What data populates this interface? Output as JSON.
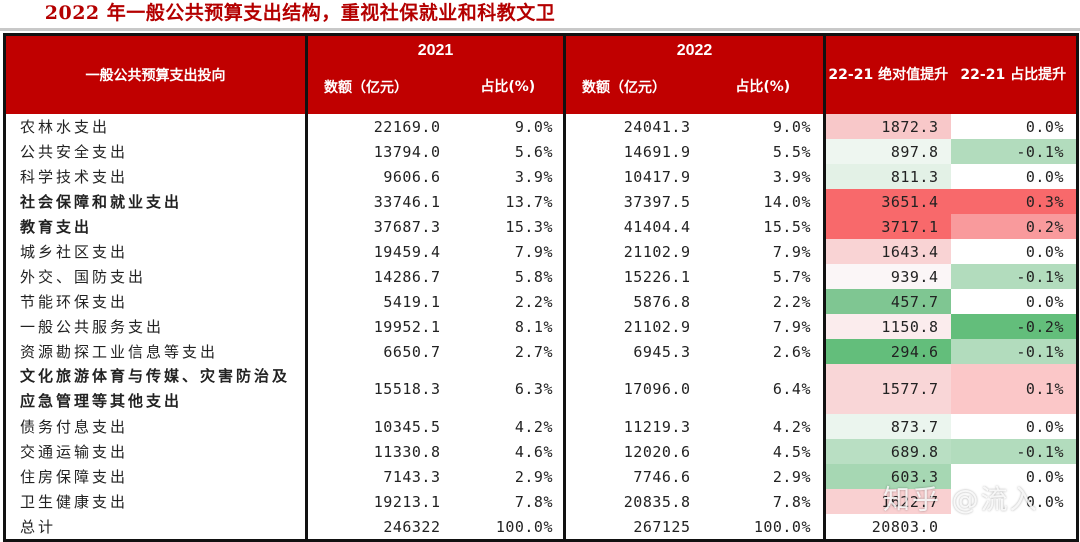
{
  "title": "2022 年一般公共预算支出结构，重视社保就业和科教文卫",
  "header": {
    "category_label": "一般公共预算支出投向",
    "year_2021": "2021",
    "year_2022": "2022",
    "amount_label": "数额（亿元）",
    "share_label": "占比(%)",
    "abs_change_label": "22-21 绝对值提升",
    "share_change_label": "22-21 占比提升"
  },
  "rows": [
    {
      "name": "农林水支出",
      "bold": false,
      "v2021": "22169.0",
      "p2021": "9.0%",
      "v2022": "24041.3",
      "p2022": "9.0%",
      "abs": "1872.3",
      "share": "0.0%",
      "abs_color": "#f8c8c9",
      "share_color": "#ffffff"
    },
    {
      "name": "公共安全支出",
      "bold": false,
      "v2021": "13794.0",
      "p2021": "5.6%",
      "v2022": "14691.9",
      "p2022": "5.5%",
      "abs": "897.8",
      "share": "-0.1%",
      "abs_color": "#eef6f0",
      "share_color": "#b2dcbd"
    },
    {
      "name": "科学技术支出",
      "bold": false,
      "v2021": "9606.6",
      "p2021": "3.9%",
      "v2022": "10417.9",
      "p2022": "3.9%",
      "abs": "811.3",
      "share": "0.0%",
      "abs_color": "#e3f1e6",
      "share_color": "#ffffff"
    },
    {
      "name": "社会保障和就业支出",
      "bold": true,
      "v2021": "33746.1",
      "p2021": "13.7%",
      "v2022": "37397.5",
      "p2022": "14.0%",
      "abs": "3651.4",
      "share": "0.3%",
      "abs_color": "#f8696b",
      "share_color": "#f8696b"
    },
    {
      "name": "教育支出",
      "bold": true,
      "v2021": "37687.3",
      "p2021": "15.3%",
      "v2022": "41404.4",
      "p2022": "15.5%",
      "abs": "3717.1",
      "share": "0.2%",
      "abs_color": "#f8696b",
      "share_color": "#f99a9c"
    },
    {
      "name": "城乡社区支出",
      "bold": false,
      "v2021": "19459.4",
      "p2021": "7.9%",
      "v2022": "21102.9",
      "p2022": "7.9%",
      "abs": "1643.4",
      "share": "0.0%",
      "abs_color": "#f9d3d4",
      "share_color": "#ffffff"
    },
    {
      "name": "外交、国防支出",
      "bold": false,
      "v2021": "14286.7",
      "p2021": "5.8%",
      "v2022": "15226.1",
      "p2022": "5.7%",
      "abs": "939.4",
      "share": "-0.1%",
      "abs_color": "#fbf6f7",
      "share_color": "#b2dcbd"
    },
    {
      "name": "节能环保支出",
      "bold": false,
      "v2021": "5419.1",
      "p2021": "2.2%",
      "v2022": "5876.8",
      "p2022": "2.2%",
      "abs": "457.7",
      "share": "0.0%",
      "abs_color": "#7fc692",
      "share_color": "#ffffff"
    },
    {
      "name": "一般公共服务支出",
      "bold": false,
      "v2021": "19952.1",
      "p2021": "8.1%",
      "v2022": "21102.9",
      "p2022": "7.9%",
      "abs": "1150.8",
      "share": "-0.2%",
      "abs_color": "#fbeced",
      "share_color": "#63be7b"
    },
    {
      "name": "资源勘探工业信息等支出",
      "bold": false,
      "v2021": "6650.7",
      "p2021": "2.7%",
      "v2022": "6945.3",
      "p2022": "2.6%",
      "abs": "294.6",
      "share": "-0.1%",
      "abs_color": "#63be7b",
      "share_color": "#b2dcbd"
    },
    {
      "name": "文化旅游体育与传媒、灾害防治及应急管理等其他支出",
      "bold": true,
      "tall": true,
      "v2021": "15518.3",
      "p2021": "6.3%",
      "v2022": "17096.0",
      "p2022": "6.4%",
      "abs": "1577.7",
      "share": "0.1%",
      "abs_color": "#f9d6d7",
      "share_color": "#fbc7c8"
    },
    {
      "name": "债务付息支出",
      "bold": false,
      "v2021": "10345.5",
      "p2021": "4.2%",
      "v2022": "11219.3",
      "p2022": "4.2%",
      "abs": "873.7",
      "share": "0.0%",
      "abs_color": "#ebf5ee",
      "share_color": "#ffffff"
    },
    {
      "name": "交通运输支出",
      "bold": false,
      "v2021": "11330.8",
      "p2021": "4.6%",
      "v2022": "12020.6",
      "p2022": "4.5%",
      "abs": "689.8",
      "share": "-0.1%",
      "abs_color": "#b9dfc3",
      "share_color": "#b2dcbd"
    },
    {
      "name": "住房保障支出",
      "bold": false,
      "v2021": "7143.3",
      "p2021": "2.9%",
      "v2022": "7746.6",
      "p2022": "2.9%",
      "abs": "603.3",
      "share": "0.0%",
      "abs_color": "#a6d7b3",
      "share_color": "#ffffff"
    },
    {
      "name": "卫生健康支出",
      "bold": false,
      "v2021": "19213.1",
      "p2021": "7.8%",
      "v2022": "20835.8",
      "p2022": "7.8%",
      "abs": "1622.7",
      "share": "0.0%",
      "abs_color": "#f9d0d1",
      "share_color": "#ffffff"
    },
    {
      "name": "总计",
      "bold": false,
      "v2021": "246322",
      "p2021": "100.0%",
      "v2022": "267125",
      "p2022": "100.0%",
      "abs": "20803.0",
      "share": "",
      "abs_color": "#ffffff",
      "share_color": "#ffffff"
    }
  ],
  "watermark": "知乎 @流入"
}
